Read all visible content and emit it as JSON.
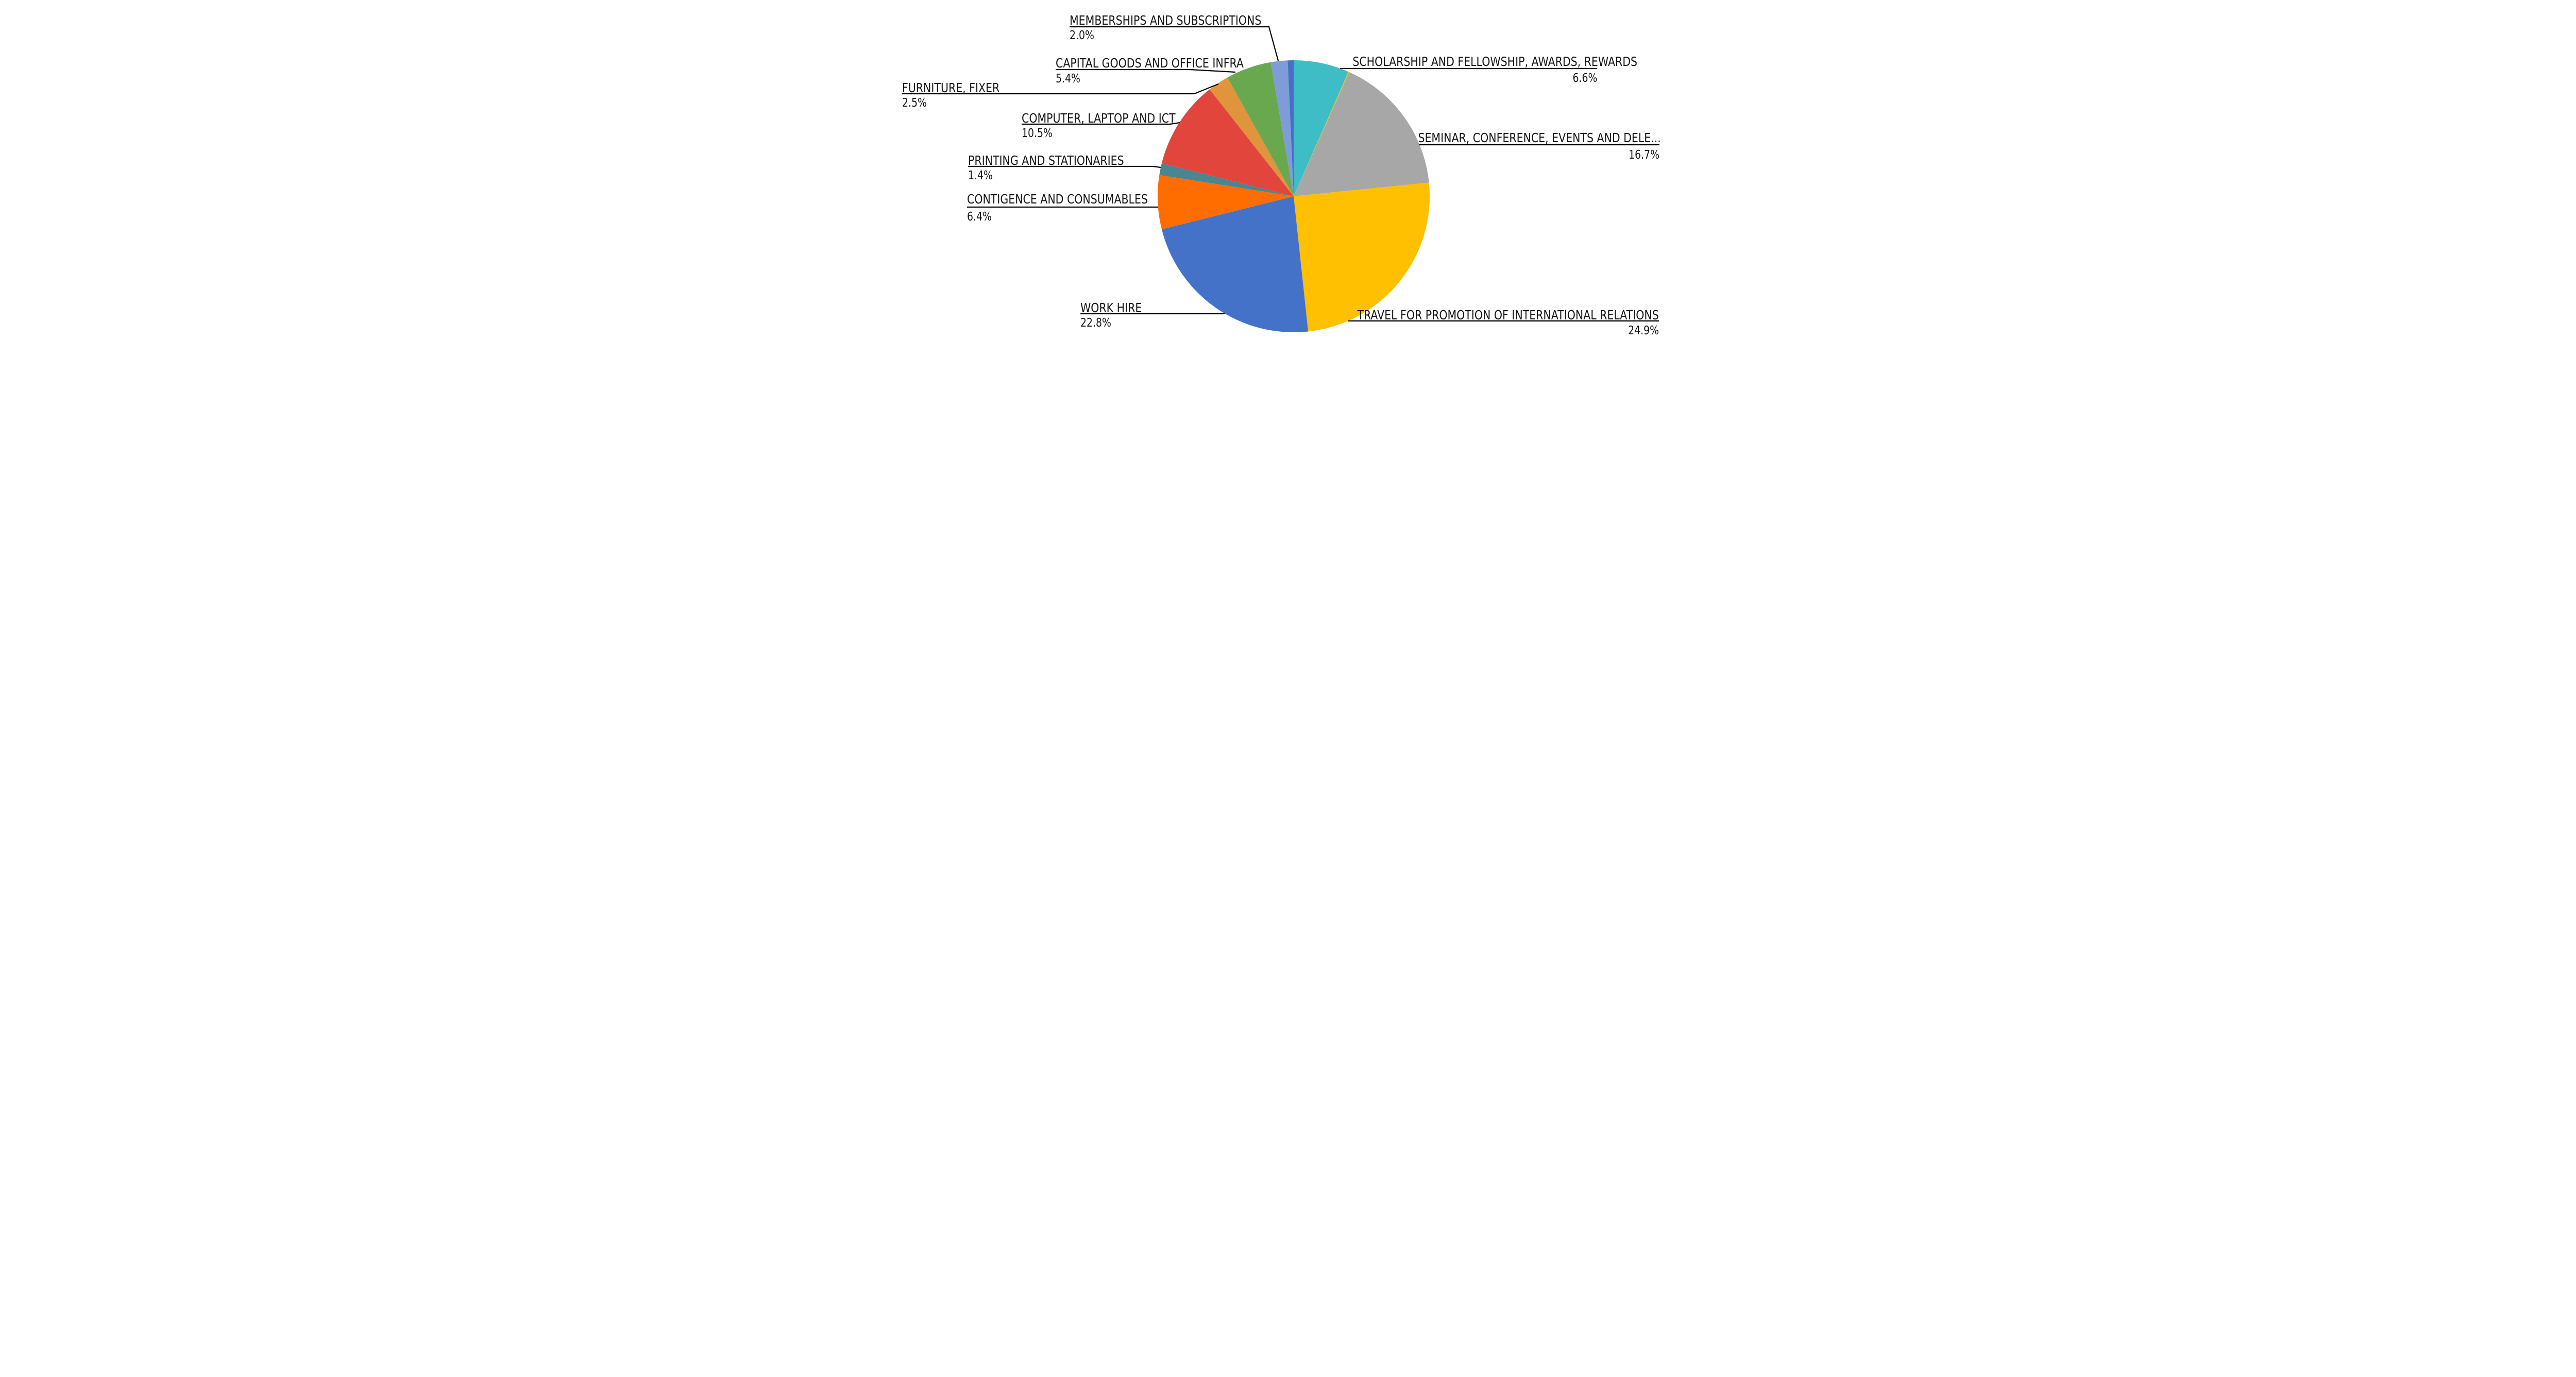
{
  "page": {
    "background": "#FFFFFF"
  },
  "chart_data": {
    "type": "pie",
    "title": "",
    "legend_position": "none",
    "start_angle": "12 o'clock",
    "direction": "clockwise",
    "value_unit": "%",
    "label_style": "uppercase name above leader line, percent value below line",
    "line_color": "#000000",
    "text_color": "#141414",
    "slices": [
      {
        "label": "SCHOLARSHIP AND FELLOWSHIP, AWARDS, REWARDS",
        "value": 6.6,
        "pct_label": "6.6%",
        "color": "#3FBDC6"
      },
      {
        "label": "",
        "value": 0.1,
        "pct_label": "",
        "color": "#FFC107"
      },
      {
        "label": "SEMINAR, CONFERENCE, EVENTS AND DELE...",
        "value": 16.7,
        "pct_label": "16.7%",
        "color": "#A7A7A7"
      },
      {
        "label": "TRAVEL FOR PROMOTION OF INTERNATIONAL RELATIONS",
        "value": 24.9,
        "pct_label": "24.9%",
        "color": "#FEC001"
      },
      {
        "label": "WORK HIRE",
        "value": 22.8,
        "pct_label": "22.8%",
        "color": "#4572C9"
      },
      {
        "label": "CONTIGENCE AND CONSUMABLES",
        "value": 6.4,
        "pct_label": "6.4%",
        "color": "#FF6D01"
      },
      {
        "label": "PRINTING AND STATIONARIES",
        "value": 1.4,
        "pct_label": "1.4%",
        "color": "#4A8591"
      },
      {
        "label": "COMPUTER, LAPTOP AND ICT",
        "value": 10.5,
        "pct_label": "10.5%",
        "color": "#E1453B"
      },
      {
        "label": "FURNITURE, FIXER",
        "value": 2.5,
        "pct_label": "2.5%",
        "color": "#E0943C"
      },
      {
        "label": "CAPITAL GOODS AND OFFICE INFRA",
        "value": 5.4,
        "pct_label": "5.4%",
        "color": "#6AA84F"
      },
      {
        "label": "MEMBERSHIPS AND SUBSCRIPTIONS",
        "value": 2.0,
        "pct_label": "2.0%",
        "color": "#7E9DD8"
      },
      {
        "label": "",
        "value": 0.7,
        "pct_label": "",
        "color": "#4470C8"
      }
    ]
  }
}
